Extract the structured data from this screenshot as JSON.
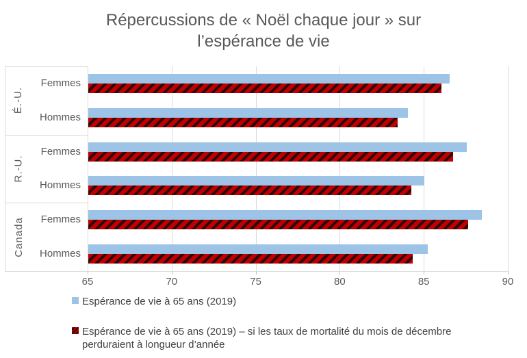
{
  "chart_data": {
    "type": "bar",
    "orientation": "horizontal",
    "title": "Répercussions de « Noël chaque jour » sur l’espérance de vie",
    "groups": [
      {
        "label": "É.-U.",
        "rows": [
          {
            "label": "Femmes",
            "values": [
              86.5,
              86.0
            ]
          },
          {
            "label": "Hommes",
            "values": [
              84.0,
              83.4
            ]
          }
        ]
      },
      {
        "label": "R.-U.",
        "rows": [
          {
            "label": "Femmes",
            "values": [
              87.5,
              86.7
            ]
          },
          {
            "label": "Hommes",
            "values": [
              85.0,
              84.2
            ]
          }
        ]
      },
      {
        "label": "Canada",
        "rows": [
          {
            "label": "Femmes",
            "values": [
              88.4,
              87.6
            ]
          },
          {
            "label": "Hommes",
            "values": [
              85.2,
              84.3
            ]
          }
        ]
      }
    ],
    "series": [
      {
        "name": "Espérance de vie à 65 ans (2019)",
        "color": "#9dc3e6",
        "pattern": "solid"
      },
      {
        "name": "Espérance de vie à 65 ans (2019) – si les taux de mortalité du mois de décembre perduraient à longueur d’année",
        "color": "#c00000",
        "pattern": "diagonal-hatch",
        "hatch_color": "#2e0909"
      }
    ],
    "xlim": [
      65,
      90
    ],
    "xticks": [
      65,
      70,
      75,
      80,
      85,
      90
    ],
    "grid": "vertical",
    "legend_position": "bottom-left"
  },
  "colors": {
    "title_text": "#595959",
    "axis_text": "#595959",
    "legend_text": "#404040",
    "gridline": "#d9d9d9",
    "tick_mark": "#bfbfbf",
    "background": "#ffffff"
  }
}
